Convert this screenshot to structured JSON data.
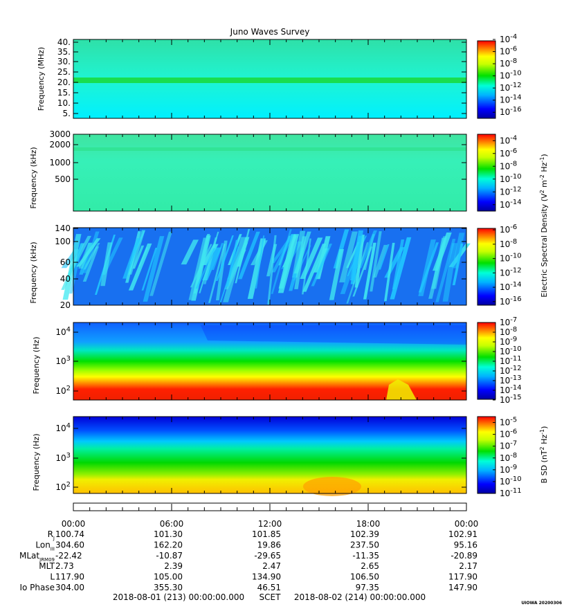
{
  "title": "Juno Waves Survey",
  "chart_data": [
    {
      "type": "heatmap",
      "ylabel": "Frequency (MHz)",
      "yticks": [
        "40.",
        "35.",
        "30.",
        "25.",
        "20.",
        "15.",
        "10.",
        "5."
      ],
      "ylim": [
        3.5,
        41.5
      ],
      "yscale": "linear",
      "colorbar": {
        "ticks": [
          "10^-4",
          "10^-6",
          "10^-8",
          "10^-10",
          "10^-12",
          "10^-14",
          "10^-16"
        ],
        "range": [
          -17,
          -4
        ]
      },
      "dominant_level": -12.7
    },
    {
      "type": "heatmap",
      "ylabel": "Frequency (kHz)",
      "yticks": [
        "3000",
        "2000",
        "1000",
        "500"
      ],
      "yscale": "log",
      "colorbar": {
        "ticks": [
          "10^-4",
          "10^-6",
          "10^-8",
          "10^-10",
          "10^-12",
          "10^-14"
        ],
        "range": [
          -15,
          -3
        ],
        "label": "Electric Spectral Density (V^2 m^-2 Hz^-1)"
      },
      "dominant_level": -11.5
    },
    {
      "type": "heatmap",
      "ylabel": "Frequency (kHz)",
      "yticks": [
        "140",
        "100",
        "60",
        "40",
        "20"
      ],
      "yscale": "log",
      "colorbar": {
        "ticks": [
          "10^-6",
          "10^-8",
          "10^-10",
          "10^-12",
          "10^-14",
          "10^-16"
        ],
        "range": [
          -16.5,
          -5.7
        ]
      },
      "dominant_level": -14.5
    },
    {
      "type": "heatmap",
      "ylabel": "Frequency (Hz)",
      "yticks": [
        "10^4",
        "10^3",
        "10^2"
      ],
      "yscale": "log",
      "colorbar": {
        "ticks": [
          "10^-7",
          "10^-8",
          "10^-9",
          "10^-10",
          "10^-11",
          "10^-12",
          "10^-13",
          "10^-14",
          "10^-15"
        ],
        "range": [
          -15,
          -7
        ]
      },
      "profile": "high at low frequencies (red below ~200 Hz), decreasing upward through yellow and green to blue near 10 kHz"
    },
    {
      "type": "heatmap",
      "ylabel": "Frequency (Hz)",
      "yticks": [
        "10^4",
        "10^3",
        "10^2"
      ],
      "yscale": "log",
      "colorbar": {
        "ticks": [
          "10^-5",
          "10^-6",
          "10^-7",
          "10^-8",
          "10^-9",
          "10^-10",
          "10^-11"
        ],
        "range": [
          -11,
          -4.5
        ],
        "label": "B SD (nT^2 Hz^-1)"
      },
      "profile": "yellow-orange below ~200 Hz, green mid band, blue above ~3 kHz"
    }
  ],
  "x_axis": {
    "tick_labels": [
      "00:00",
      "06:00",
      "12:00",
      "18:00",
      "00:00"
    ],
    "rows": [
      {
        "label": "R_J",
        "values": [
          "100.74",
          "101.30",
          "101.85",
          "102.39",
          "102.91"
        ]
      },
      {
        "label": "Lon_III",
        "values": [
          "304.60",
          "162.20",
          "19.86",
          "237.50",
          "95.16"
        ]
      },
      {
        "label": "MLat_JRM09",
        "values": [
          "-22.42",
          "-10.87",
          "-29.65",
          "-11.35",
          "-20.89"
        ]
      },
      {
        "label": "MLT",
        "values": [
          "2.73",
          "2.39",
          "2.47",
          "2.65",
          "2.17"
        ]
      },
      {
        "label": "L",
        "values": [
          "117.90",
          "105.00",
          "134.90",
          "106.50",
          "117.90"
        ]
      },
      {
        "label": "Io Phase",
        "values": [
          "304.00",
          "355.30",
          "46.51",
          "97.35",
          "147.90"
        ]
      }
    ],
    "start": "2018-08-01 (213) 00:00:00.000",
    "scale_label": "SCET",
    "end": "2018-08-02 (214) 00:00:00.000"
  },
  "credit": "UIOWA 20200306",
  "row_label_display": {
    "R_J": [
      "R",
      "J"
    ],
    "Lon_III": [
      "Lon",
      "III"
    ],
    "MLat_JRM09": [
      "MLat",
      "JRM09"
    ],
    "MLT": [
      "MLT",
      ""
    ],
    "L": [
      "L",
      ""
    ],
    "Io Phase": [
      "Io Phase",
      ""
    ]
  }
}
